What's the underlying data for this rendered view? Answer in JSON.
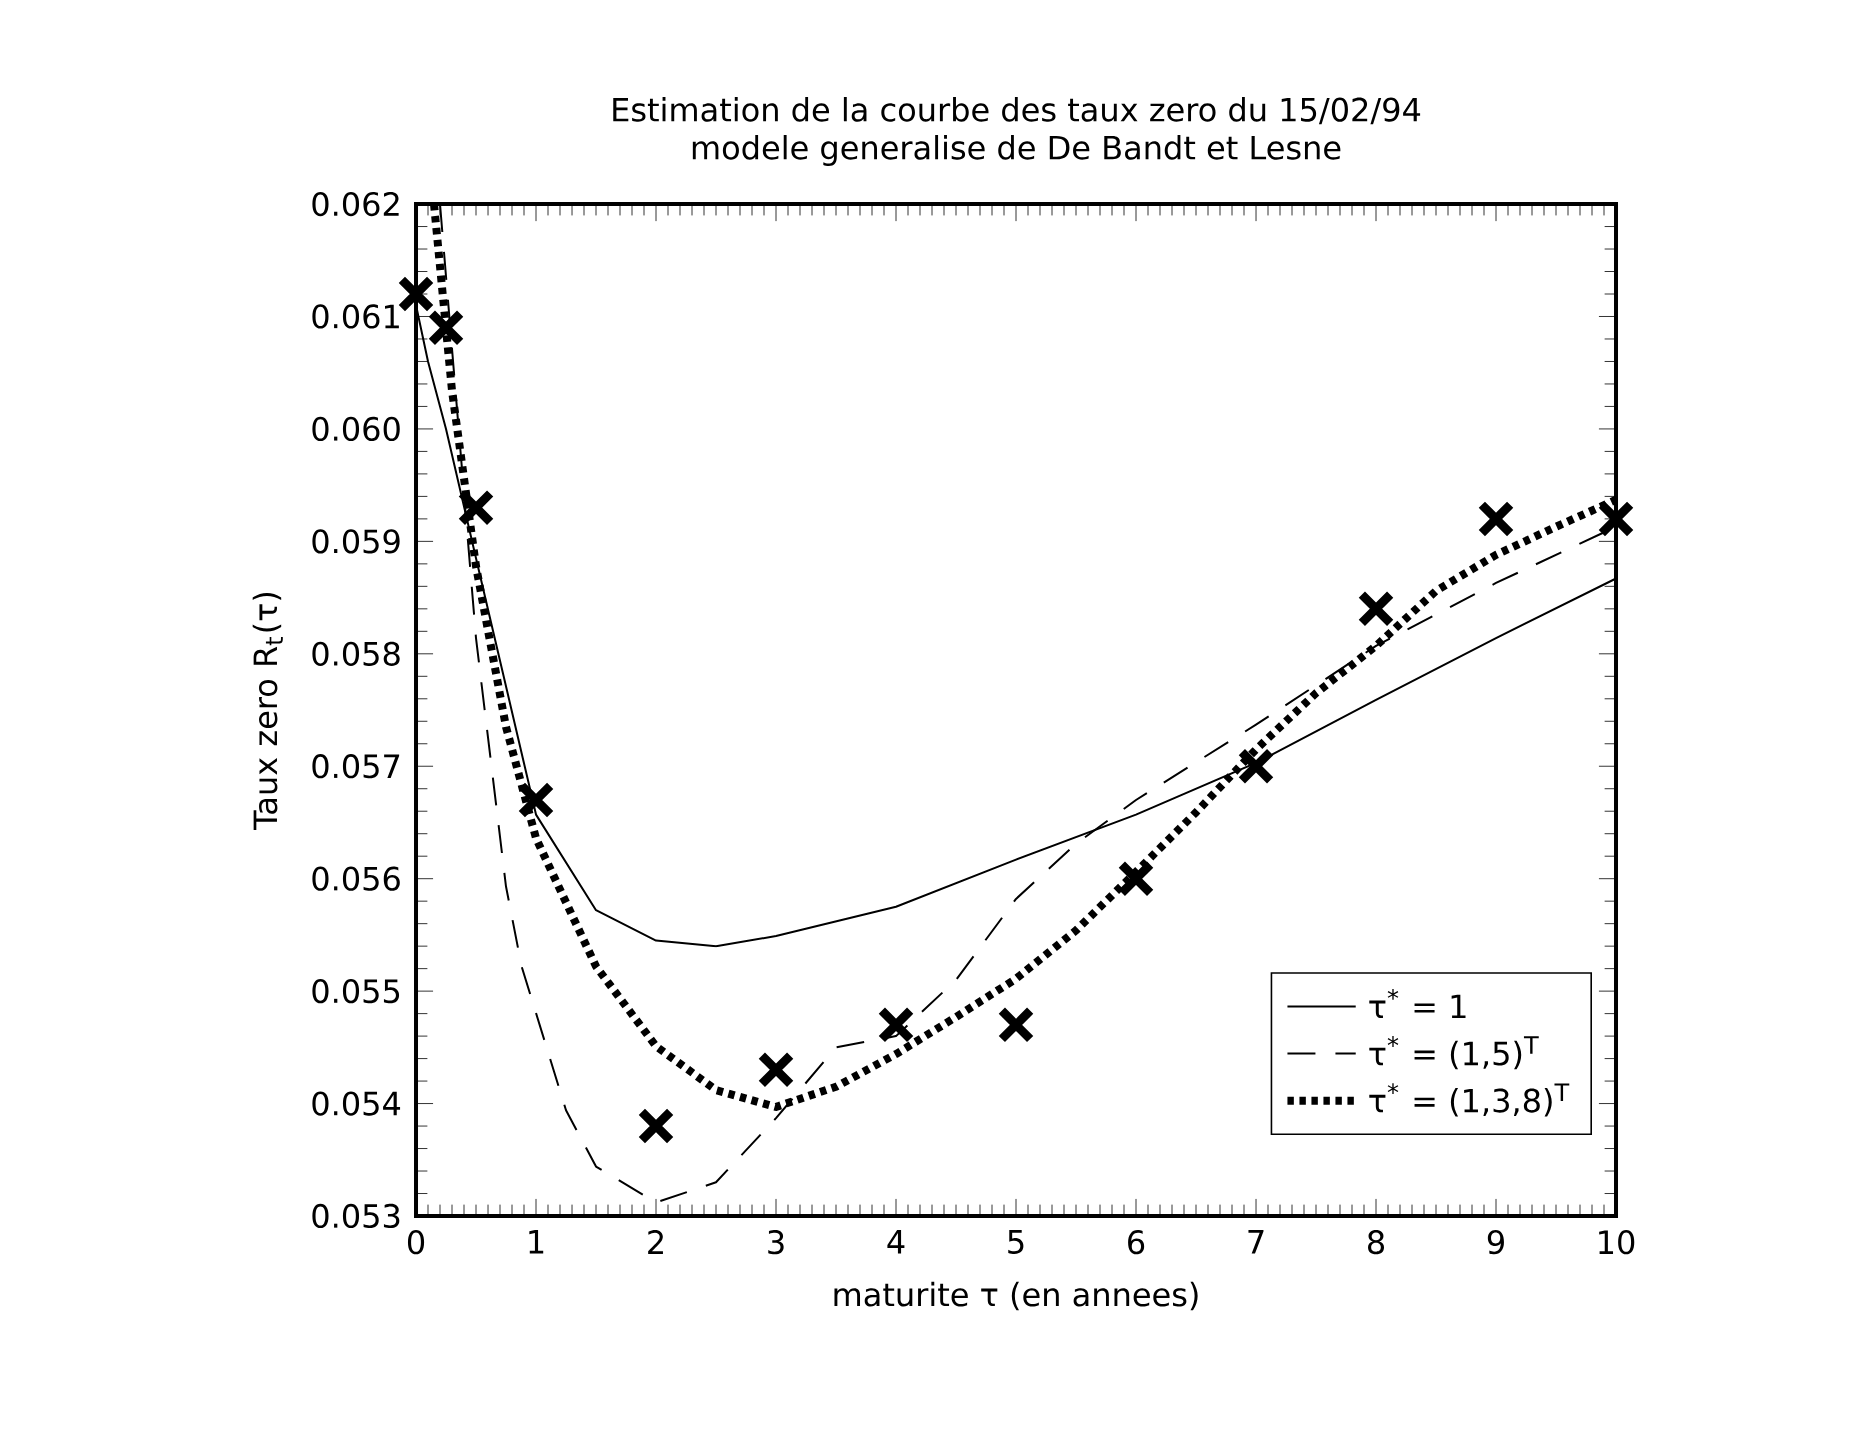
{
  "chart_data": {
    "type": "line",
    "title": "Estimation de la courbe des taux zero du 15/02/94\nmodele generalise de De Bandt et Lesne",
    "xlabel": "maturite τ (en annees)",
    "ylabel": "Taux zero R$_{t}$(τ)",
    "xlim": [
      0,
      10
    ],
    "ylim": [
      0.053,
      0.062
    ],
    "xticks": [
      0,
      1,
      2,
      3,
      4,
      5,
      6,
      7,
      8,
      9,
      10
    ],
    "yticks": [
      {
        "value": 0.053,
        "label": "0.053"
      },
      {
        "value": 0.054,
        "label": "0.054"
      },
      {
        "value": 0.055,
        "label": "0.055"
      },
      {
        "value": 0.056,
        "label": "0.056"
      },
      {
        "value": 0.057,
        "label": "0.057"
      },
      {
        "value": 0.058,
        "label": "0.058"
      },
      {
        "value": 0.059,
        "label": "0.059"
      },
      {
        "value": 0.06,
        "label": "0.060"
      },
      {
        "value": 0.061,
        "label": "0.061"
      },
      {
        "value": 0.062,
        "label": "0.062"
      }
    ],
    "grid": false,
    "legend": "bottom right",
    "series": [
      {
        "name": "τ$^{*}$ = 1",
        "line_style": "solid",
        "marker": "none",
        "color": "#000000",
        "x": [
          0,
          0.1,
          0.25,
          0.5,
          1,
          1.5,
          2,
          2.5,
          3,
          4,
          5,
          6,
          7,
          8,
          9,
          10
        ],
        "values": [
          0.0611,
          0.0606,
          0.06,
          0.05885,
          0.05657,
          0.05572,
          0.05545,
          0.0554,
          0.05549,
          0.05575,
          0.05617,
          0.05657,
          0.05703,
          0.05759,
          0.05814,
          0.05867
        ]
      },
      {
        "name": "τ$^{*}$ = (1,5)$^{T}$",
        "line_style": "dashed",
        "marker": "none",
        "color": "#000000",
        "x": [
          0.2,
          0.5,
          0.75,
          0.88,
          1.25,
          1.5,
          2,
          2.5,
          3,
          3.5,
          4,
          4.5,
          5,
          5.5,
          6,
          7,
          8,
          9,
          10
        ],
        "values": [
          0.062,
          0.05814,
          0.05593,
          0.05522,
          0.05394,
          0.05344,
          0.05312,
          0.0533,
          0.05387,
          0.0545,
          0.0546,
          0.0551,
          0.05582,
          0.05631,
          0.0567,
          0.05737,
          0.05807,
          0.05863,
          0.05913
        ]
      },
      {
        "name": "τ$^{*}$ = (1,3,8)$^{T}$",
        "line_style": "dotted",
        "marker": "none",
        "color": "#000000",
        "x": [
          0.15,
          0.3,
          0.5,
          0.75,
          1,
          1.5,
          2,
          2.5,
          3,
          3.5,
          4,
          4.5,
          5,
          5.5,
          6,
          6.5,
          7,
          7.5,
          8,
          8.5,
          9,
          9.5,
          10
        ],
        "values": [
          0.062,
          0.06034,
          0.05878,
          0.05735,
          0.05636,
          0.05522,
          0.05451,
          0.05412,
          0.05397,
          0.05415,
          0.05444,
          0.05477,
          0.05511,
          0.05554,
          0.05606,
          0.05659,
          0.05715,
          0.05765,
          0.05807,
          0.05856,
          0.05888,
          0.05913,
          0.05937
        ]
      },
      {
        "type": "scatter",
        "marker": "cross",
        "color": "#000000",
        "x": [
          0,
          0.25,
          0.5,
          1,
          2,
          3,
          4,
          5,
          6,
          7,
          8,
          9,
          10
        ],
        "values": [
          0.0612,
          0.0609,
          0.0593,
          0.0567,
          0.0538,
          0.0543,
          0.0547,
          0.0547,
          0.056,
          0.057,
          0.0584,
          0.0592,
          0.0592
        ]
      }
    ]
  }
}
